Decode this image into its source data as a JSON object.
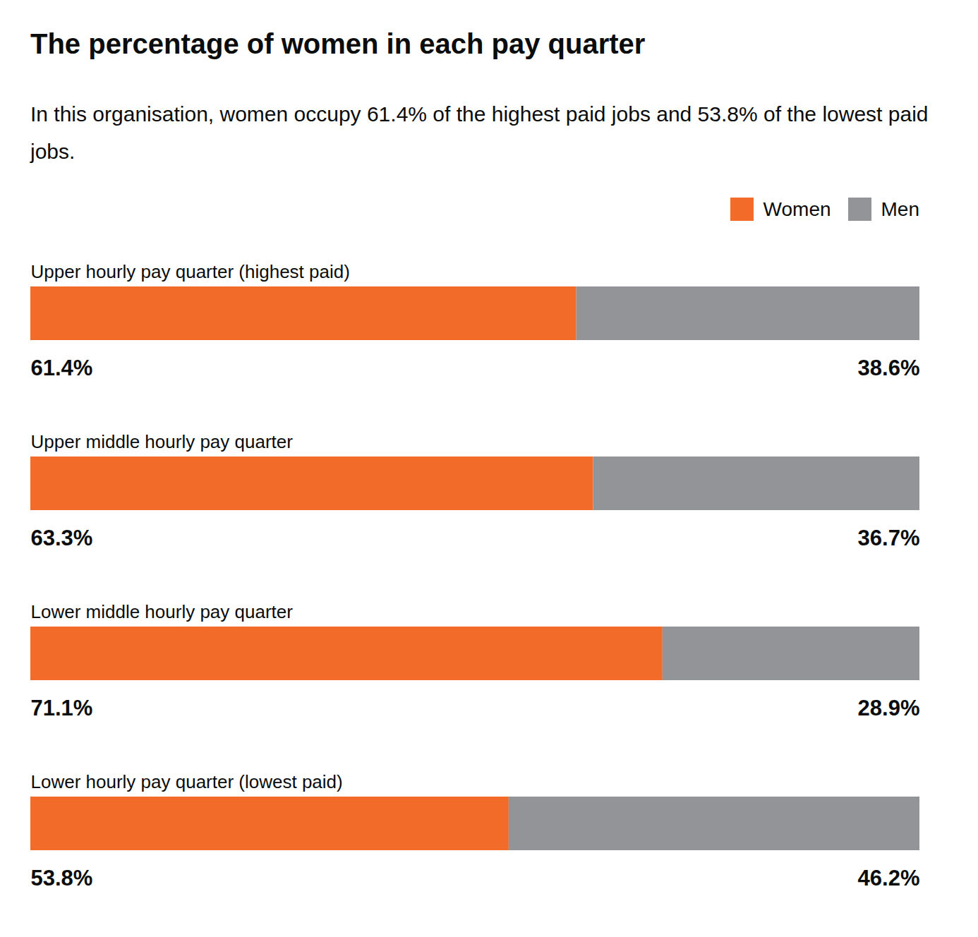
{
  "chart_data": {
    "type": "bar",
    "title": "The percentage of women in each pay quarter",
    "subtitle": "In this organisation, women occupy 61.4% of the highest paid jobs and 53.8% of the lowest paid jobs.",
    "orientation": "horizontal",
    "stacked": true,
    "data_labels": true,
    "tick_labels": false,
    "legend": "top-right",
    "categories": [
      "Upper hourly pay quarter (highest paid)",
      "Upper middle hourly pay quarter",
      "Lower middle hourly pay quarter",
      "Lower hourly pay quarter (lowest paid)"
    ],
    "series": [
      {
        "name": "Women",
        "color": "#f26b29",
        "values": [
          61.4,
          63.3,
          71.1,
          53.8
        ],
        "value_labels": [
          "61.4%",
          "63.3%",
          "71.1%",
          "53.8%"
        ]
      },
      {
        "name": "Men",
        "color": "#929497",
        "values": [
          38.6,
          36.7,
          28.9,
          46.2
        ],
        "value_labels": [
          "38.6%",
          "36.7%",
          "28.9%",
          "46.2%"
        ]
      }
    ],
    "xlim": [
      0,
      100
    ]
  }
}
